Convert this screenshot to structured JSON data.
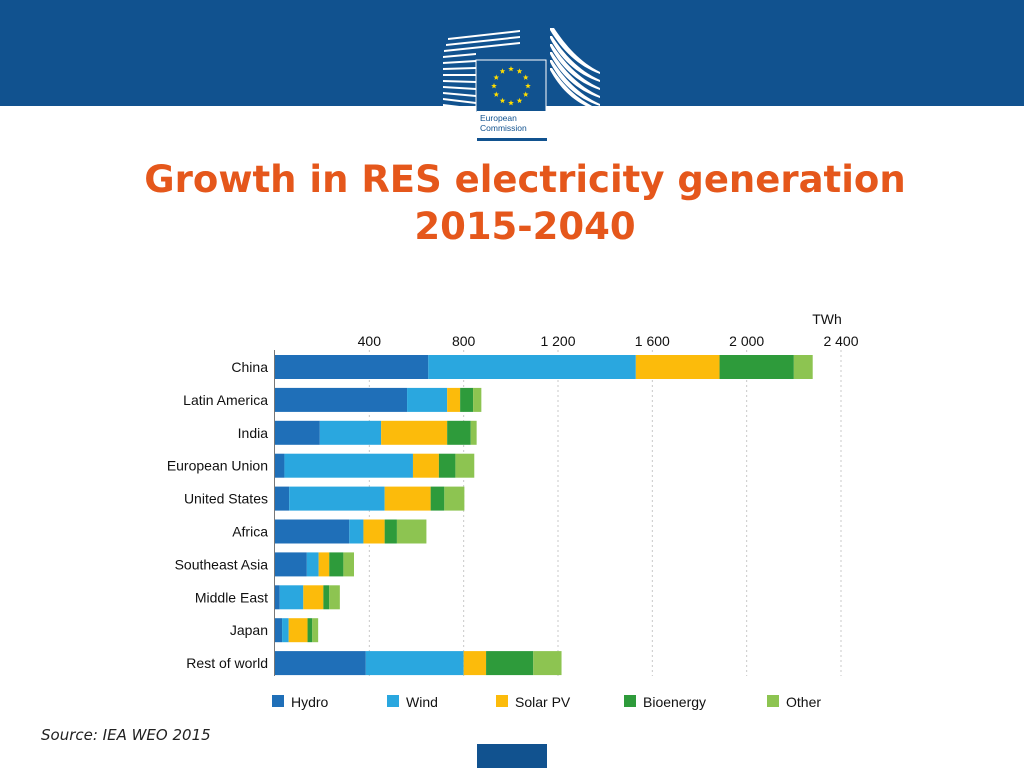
{
  "header": {
    "logo_line1": "European",
    "logo_line2": "Commission"
  },
  "slide": {
    "title_line1": "Growth in RES electricity generation",
    "title_line2": "2015-2040",
    "source": "Source: IEA WEO 2015"
  },
  "colors": {
    "header_band": "#11528f",
    "title": "#e5571b",
    "hydro": "#1f6fb8",
    "wind": "#2aa7df",
    "solar": "#fcbb0b",
    "bioenergy": "#2e9b3b",
    "other": "#8dc451"
  },
  "chart_data": {
    "type": "bar",
    "orientation": "horizontal",
    "stacked": true,
    "unit_label": "TWh",
    "xlim": [
      0,
      2400
    ],
    "x_ticks": [
      {
        "value": 400,
        "label": "400"
      },
      {
        "value": 800,
        "label": "800"
      },
      {
        "value": 1200,
        "label": "1 200"
      },
      {
        "value": 1600,
        "label": "1 600"
      },
      {
        "value": 2000,
        "label": "2 000"
      },
      {
        "value": 2400,
        "label": "2 400"
      }
    ],
    "grid": true,
    "legend_position": "bottom",
    "categories": [
      "China",
      "Latin America",
      "India",
      "European Union",
      "United States",
      "Africa",
      "Southeast Asia",
      "Middle East",
      "Japan",
      "Rest of world"
    ],
    "series": [
      {
        "name": "Hydro",
        "color_key": "hydro",
        "values": [
          650,
          560,
          190,
          40,
          60,
          315,
          135,
          20,
          30,
          385
        ]
      },
      {
        "name": "Wind",
        "color_key": "wind",
        "values": [
          880,
          170,
          260,
          545,
          405,
          60,
          50,
          100,
          28,
          415
        ]
      },
      {
        "name": "Solar PV",
        "color_key": "solar",
        "values": [
          355,
          55,
          280,
          110,
          195,
          90,
          45,
          85,
          80,
          95
        ]
      },
      {
        "name": "Bioenergy",
        "color_key": "bioenergy",
        "values": [
          315,
          55,
          100,
          70,
          58,
          52,
          60,
          25,
          20,
          200
        ]
      },
      {
        "name": "Other",
        "color_key": "other",
        "values": [
          80,
          35,
          25,
          80,
          85,
          125,
          45,
          45,
          25,
          120
        ]
      }
    ]
  }
}
